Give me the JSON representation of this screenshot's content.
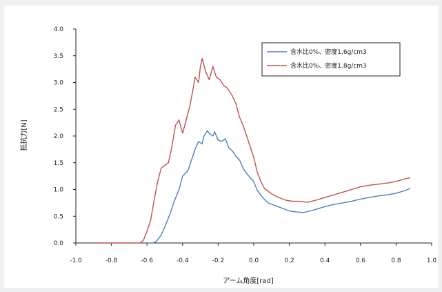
{
  "chart_data": {
    "type": "line",
    "title": "",
    "xlabel": "アーム角度[rad]",
    "ylabel": "抵抗力[N]",
    "xlim": [
      -1.0,
      1.0
    ],
    "ylim": [
      0.0,
      4.0
    ],
    "xticks": [
      "-1.0",
      "-0.8",
      "-0.6",
      "-0.4",
      "-0.2",
      "0.0",
      "0.2",
      "0.4",
      "0.6",
      "0.8",
      "1.0"
    ],
    "yticks": [
      "0.0",
      "0.5",
      "1.0",
      "1.5",
      "2.0",
      "2.5",
      "3.0",
      "3.5",
      "4.0"
    ],
    "grid": false,
    "legend_position": "top-right",
    "series": [
      {
        "name": "含水比0%、密度1.6g/cm3",
        "color": "#4a7fc1",
        "points": [
          [
            -0.6,
            0.0
          ],
          [
            -0.57,
            0.0
          ],
          [
            -0.55,
            0.02
          ],
          [
            -0.52,
            0.15
          ],
          [
            -0.5,
            0.3
          ],
          [
            -0.47,
            0.55
          ],
          [
            -0.45,
            0.75
          ],
          [
            -0.42,
            1.0
          ],
          [
            -0.4,
            1.25
          ],
          [
            -0.37,
            1.35
          ],
          [
            -0.35,
            1.55
          ],
          [
            -0.33,
            1.75
          ],
          [
            -0.31,
            1.9
          ],
          [
            -0.29,
            1.85
          ],
          [
            -0.28,
            2.0
          ],
          [
            -0.26,
            2.1
          ],
          [
            -0.25,
            2.05
          ],
          [
            -0.23,
            2.0
          ],
          [
            -0.22,
            2.08
          ],
          [
            -0.2,
            1.92
          ],
          [
            -0.18,
            1.9
          ],
          [
            -0.16,
            1.95
          ],
          [
            -0.14,
            1.78
          ],
          [
            -0.12,
            1.72
          ],
          [
            -0.1,
            1.62
          ],
          [
            -0.08,
            1.55
          ],
          [
            -0.06,
            1.4
          ],
          [
            -0.04,
            1.3
          ],
          [
            -0.02,
            1.22
          ],
          [
            0.0,
            1.15
          ],
          [
            0.02,
            0.98
          ],
          [
            0.05,
            0.85
          ],
          [
            0.08,
            0.75
          ],
          [
            0.12,
            0.7
          ],
          [
            0.16,
            0.65
          ],
          [
            0.2,
            0.6
          ],
          [
            0.24,
            0.58
          ],
          [
            0.28,
            0.57
          ],
          [
            0.32,
            0.6
          ],
          [
            0.36,
            0.64
          ],
          [
            0.4,
            0.68
          ],
          [
            0.45,
            0.72
          ],
          [
            0.5,
            0.75
          ],
          [
            0.55,
            0.78
          ],
          [
            0.6,
            0.82
          ],
          [
            0.65,
            0.85
          ],
          [
            0.7,
            0.88
          ],
          [
            0.75,
            0.9
          ],
          [
            0.8,
            0.93
          ],
          [
            0.85,
            0.98
          ],
          [
            0.88,
            1.02
          ]
        ]
      },
      {
        "name": "含水比0%、密度1.8g/cm3",
        "color": "#c0504d",
        "points": [
          [
            -0.88,
            0.0
          ],
          [
            -0.8,
            0.0
          ],
          [
            -0.7,
            0.0
          ],
          [
            -0.64,
            0.0
          ],
          [
            -0.62,
            0.05
          ],
          [
            -0.6,
            0.22
          ],
          [
            -0.58,
            0.42
          ],
          [
            -0.56,
            0.8
          ],
          [
            -0.54,
            1.15
          ],
          [
            -0.52,
            1.4
          ],
          [
            -0.5,
            1.45
          ],
          [
            -0.48,
            1.5
          ],
          [
            -0.46,
            1.8
          ],
          [
            -0.44,
            2.2
          ],
          [
            -0.42,
            2.3
          ],
          [
            -0.4,
            2.05
          ],
          [
            -0.38,
            2.3
          ],
          [
            -0.36,
            2.55
          ],
          [
            -0.34,
            2.9
          ],
          [
            -0.33,
            3.1
          ],
          [
            -0.31,
            3.0
          ],
          [
            -0.3,
            3.3
          ],
          [
            -0.29,
            3.45
          ],
          [
            -0.27,
            3.2
          ],
          [
            -0.25,
            3.05
          ],
          [
            -0.23,
            3.3
          ],
          [
            -0.21,
            3.1
          ],
          [
            -0.19,
            3.05
          ],
          [
            -0.17,
            2.95
          ],
          [
            -0.15,
            2.9
          ],
          [
            -0.12,
            2.75
          ],
          [
            -0.1,
            2.6
          ],
          [
            -0.08,
            2.35
          ],
          [
            -0.06,
            2.2
          ],
          [
            -0.04,
            2.0
          ],
          [
            -0.02,
            1.8
          ],
          [
            0.0,
            1.6
          ],
          [
            0.02,
            1.32
          ],
          [
            0.04,
            1.15
          ],
          [
            0.06,
            1.02
          ],
          [
            0.1,
            0.92
          ],
          [
            0.14,
            0.85
          ],
          [
            0.18,
            0.8
          ],
          [
            0.22,
            0.78
          ],
          [
            0.26,
            0.78
          ],
          [
            0.3,
            0.76
          ],
          [
            0.35,
            0.8
          ],
          [
            0.4,
            0.85
          ],
          [
            0.45,
            0.9
          ],
          [
            0.5,
            0.95
          ],
          [
            0.55,
            1.0
          ],
          [
            0.6,
            1.05
          ],
          [
            0.65,
            1.08
          ],
          [
            0.7,
            1.1
          ],
          [
            0.75,
            1.12
          ],
          [
            0.8,
            1.15
          ],
          [
            0.85,
            1.2
          ],
          [
            0.88,
            1.22
          ]
        ]
      }
    ]
  }
}
